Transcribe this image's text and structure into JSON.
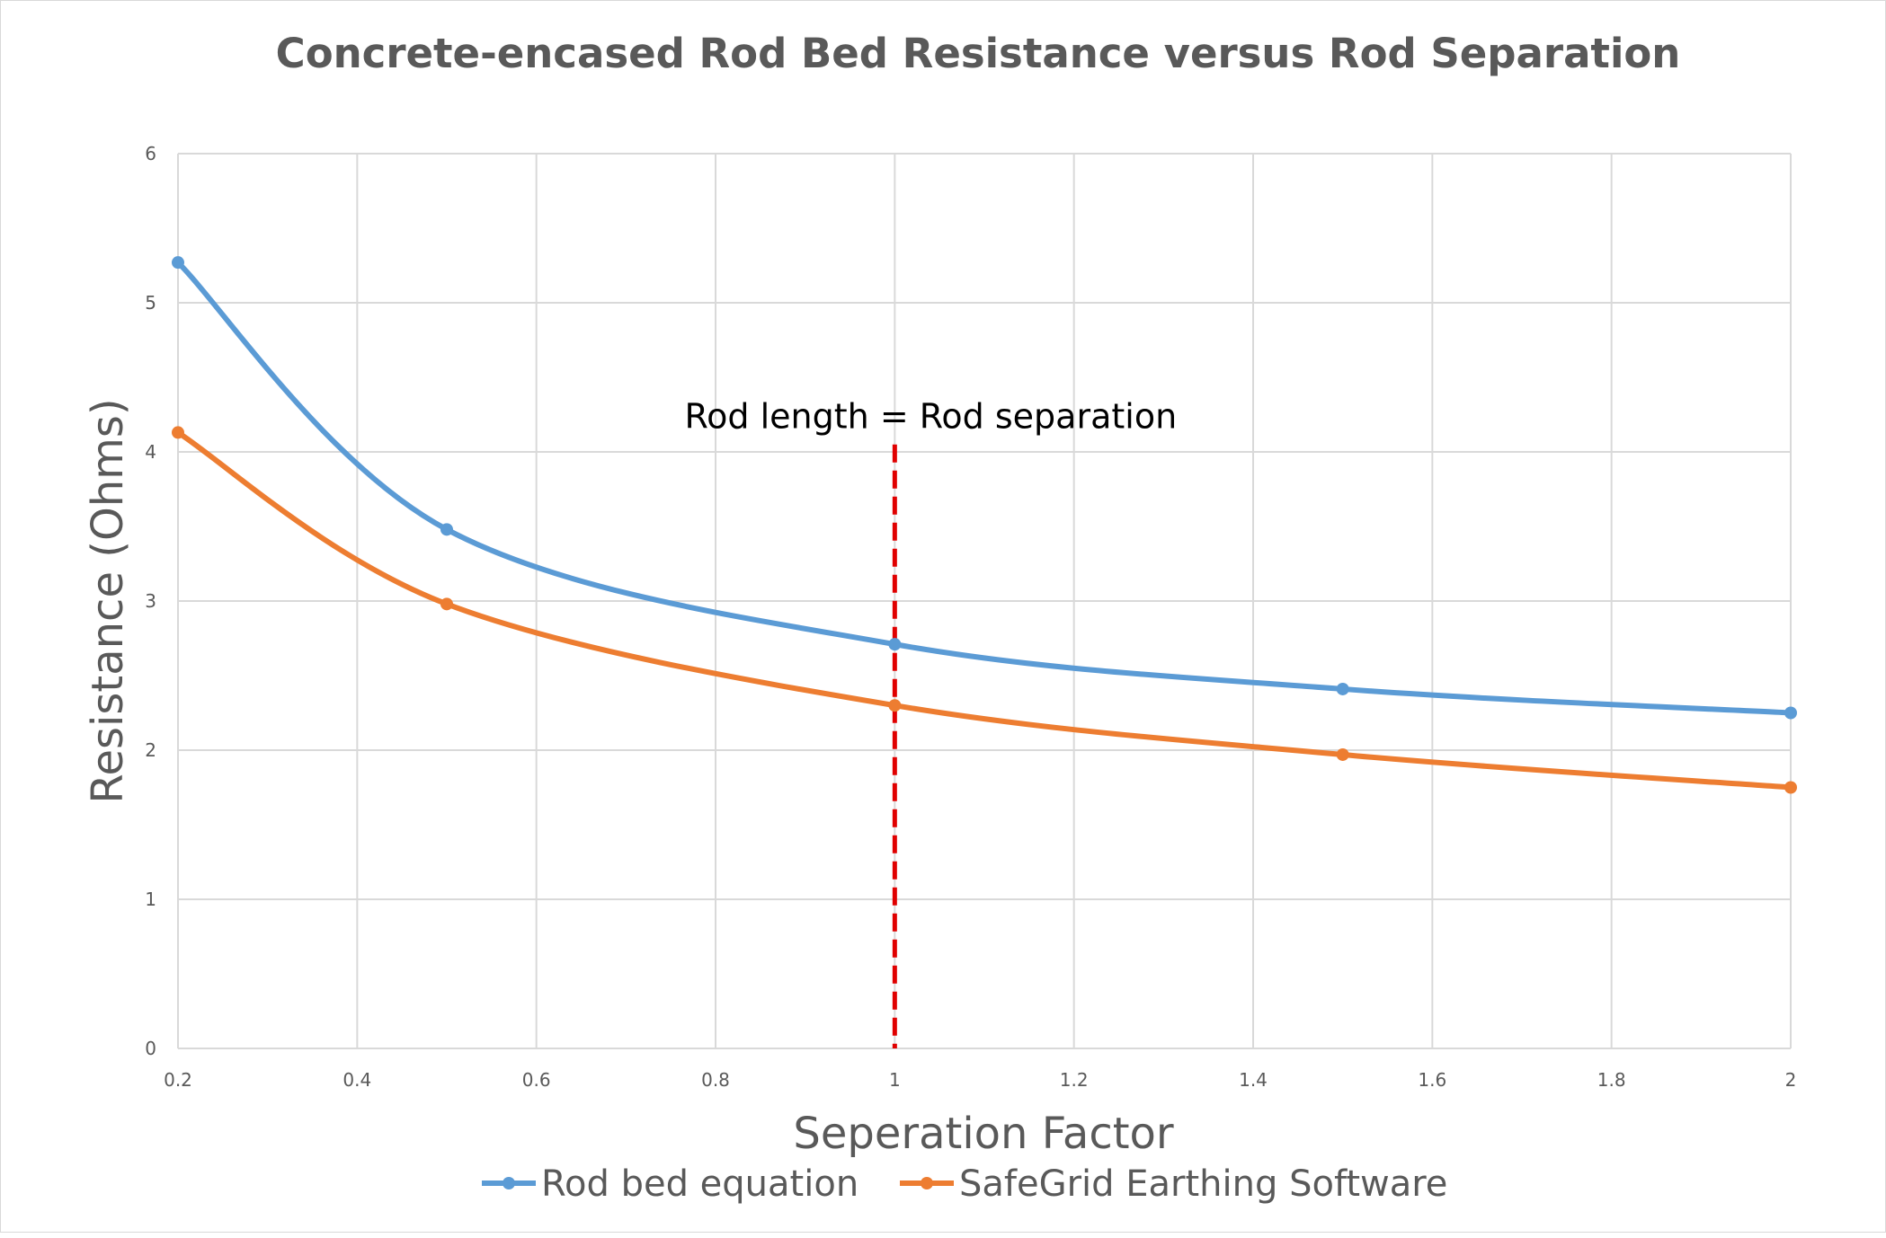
{
  "chart_data": {
    "type": "line",
    "title": "Concrete-encased Rod Bed Resistance versus Rod Separation",
    "xlabel": "Seperation Factor",
    "ylabel": "Resistance (Ohms)",
    "xlim": [
      0.2,
      2
    ],
    "ylim": [
      0,
      6
    ],
    "x_ticks": [
      "0.2",
      "0.4",
      "0.6",
      "0.8",
      "1",
      "1.2",
      "1.4",
      "1.6",
      "1.8",
      "2"
    ],
    "y_ticks": [
      "0",
      "1",
      "2",
      "3",
      "4",
      "5",
      "6"
    ],
    "grid": true,
    "legend_position": "bottom",
    "smooth": true,
    "series": [
      {
        "name": "Rod bed equation",
        "color": "#5b9bd5",
        "x": [
          0.2,
          0.5,
          1,
          1.5,
          2
        ],
        "y": [
          5.27,
          3.48,
          2.71,
          2.41,
          2.25
        ]
      },
      {
        "name": "SafeGrid Earthing Software",
        "color": "#ed7d31",
        "x": [
          0.2,
          0.5,
          1,
          1.5,
          2
        ],
        "y": [
          4.13,
          2.98,
          2.3,
          1.97,
          1.75
        ]
      }
    ],
    "annotation": {
      "text": "Rod length = Rod separation",
      "x": 1,
      "y_top": 4.05,
      "color": "#e00000",
      "style": "dashed"
    }
  }
}
